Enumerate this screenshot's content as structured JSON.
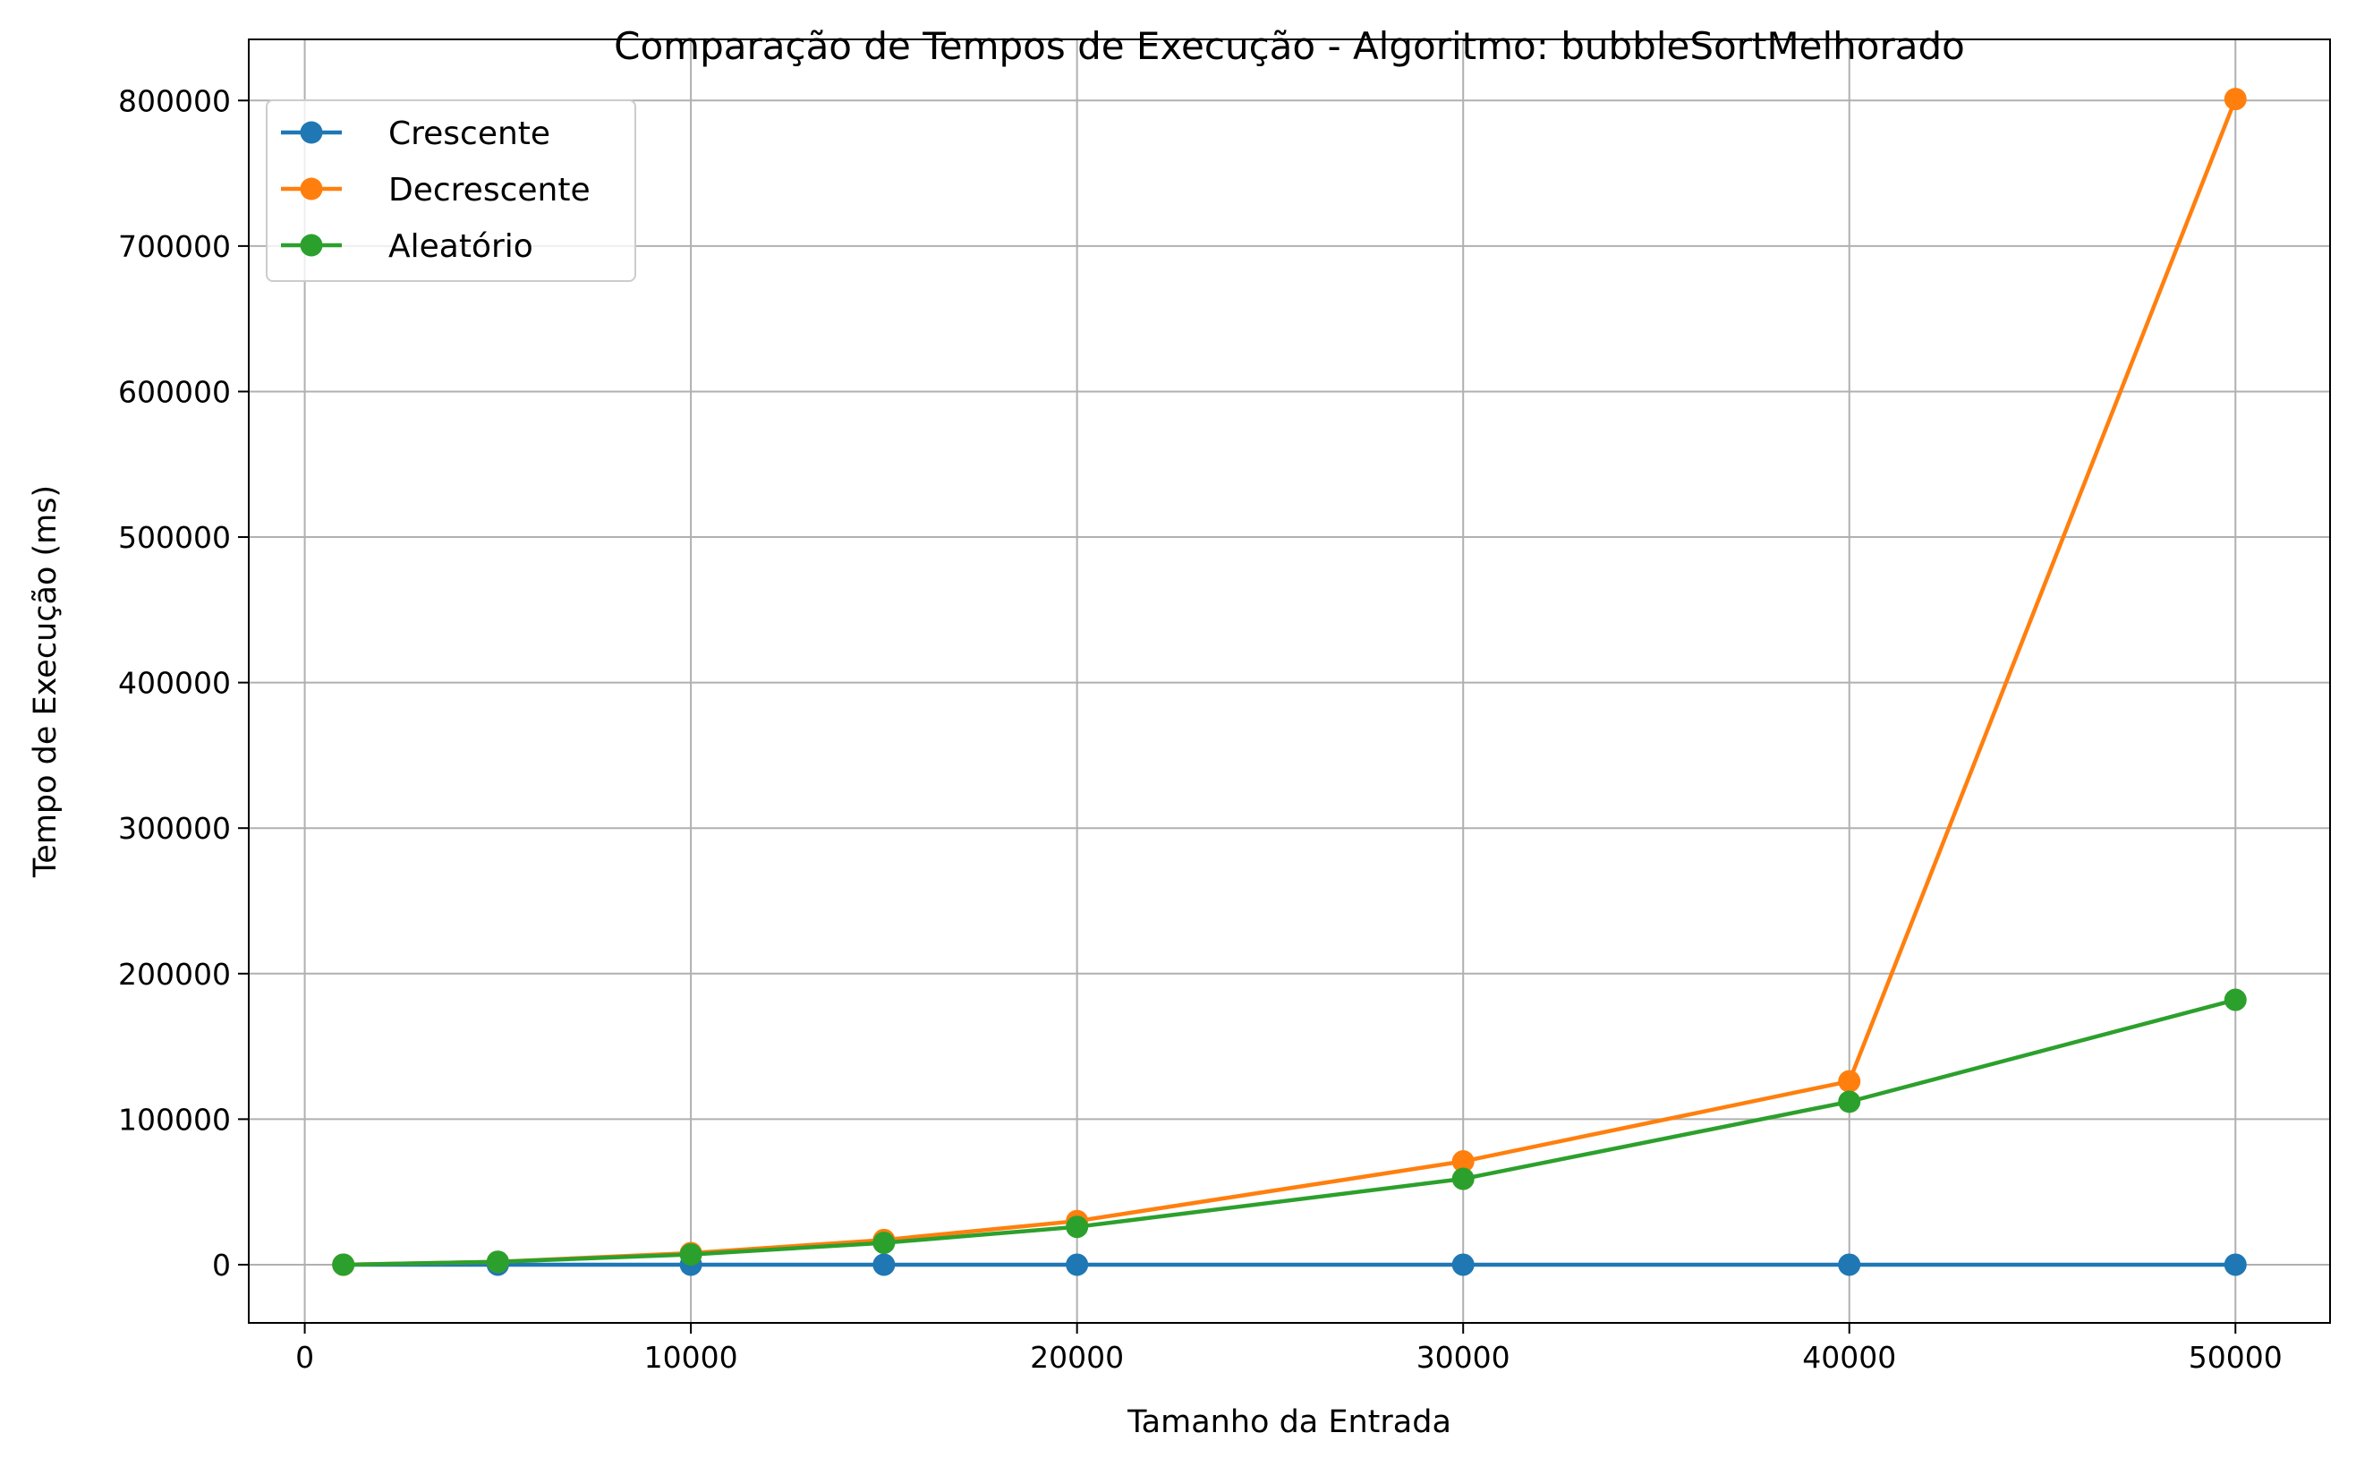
{
  "chart_data": {
    "type": "line",
    "title": "Comparação de Tempos de Execução - Algoritmo: bubbleSortMelhorado",
    "xlabel": "Tamanho da Entrada",
    "ylabel": "Tempo de Execução (ms)",
    "x": [
      1000,
      5000,
      10000,
      15000,
      20000,
      30000,
      40000,
      50000
    ],
    "xlim": [
      -1450,
      52450
    ],
    "ylim": [
      -40000,
      842000
    ],
    "xticks": [
      0,
      10000,
      20000,
      30000,
      40000,
      50000
    ],
    "yticks": [
      0,
      100000,
      200000,
      300000,
      400000,
      500000,
      600000,
      700000,
      800000
    ],
    "grid": true,
    "legend_position": "top-left",
    "series": [
      {
        "name": "Crescente",
        "color": "#1f77b4",
        "marker": "circle",
        "values": [
          0,
          0,
          0,
          0,
          0,
          0,
          0,
          0
        ]
      },
      {
        "name": "Decrescente",
        "color": "#ff7f0e",
        "marker": "circle",
        "values": [
          0,
          2000,
          8000,
          17000,
          30000,
          71000,
          126000,
          801000
        ]
      },
      {
        "name": "Aleatório",
        "color": "#2ca02c",
        "marker": "circle",
        "values": [
          0,
          2000,
          7000,
          15000,
          26000,
          59000,
          112000,
          182000
        ]
      }
    ]
  }
}
